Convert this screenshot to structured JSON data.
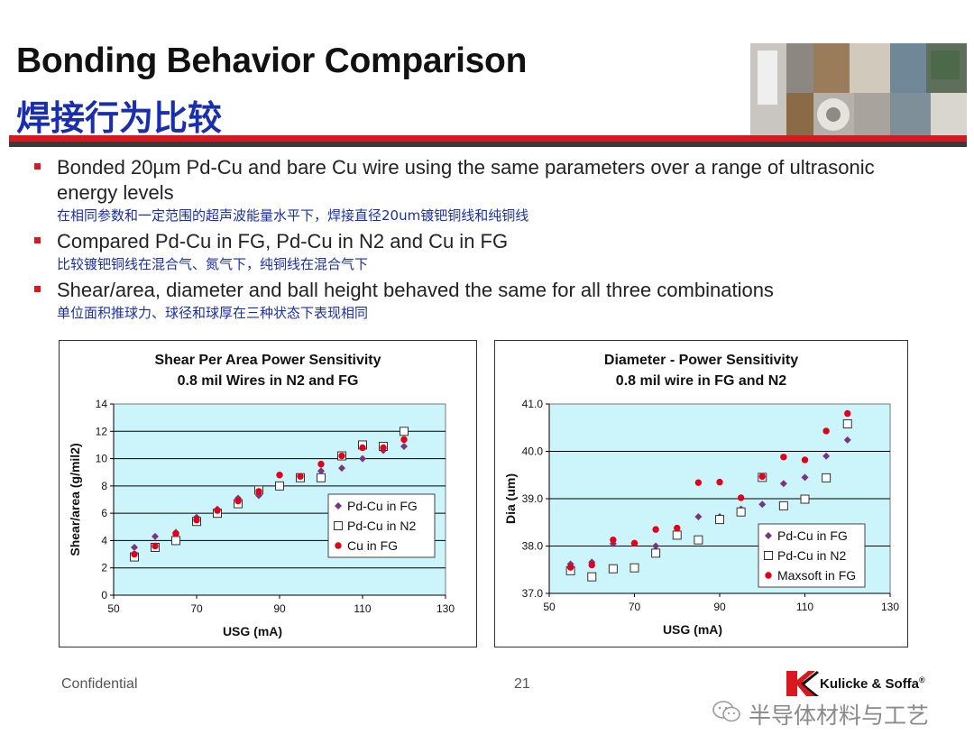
{
  "title_en": "Bonding Behavior Comparison",
  "title_zh": "焊接行为比较",
  "bullets": [
    {
      "en": "Bonded 20µm Pd-Cu and bare Cu wire using the same parameters over a range of ultrasonic energy levels",
      "zh": "在相同参数和一定范围的超声波能量水平下，焊接直径20um镀钯铜线和纯铜线"
    },
    {
      "en": "Compared Pd-Cu in FG, Pd-Cu in N2 and Cu in FG",
      "zh": "比较镀钯铜线在混合气、氮气下，纯铜线在混合气下"
    },
    {
      "en": "Shear/area, diameter and ball height behaved the same for all three combinations",
      "zh": "单位面积推球力、球径和球厚在三种状态下表现相同"
    }
  ],
  "chart_data": [
    {
      "type": "scatter",
      "title": "Shear Per Area Power Sensitivity",
      "subtitle": "0.8 mil Wires in N2 and FG",
      "xlabel": "USG (mA)",
      "ylabel": "Shear/area (g/mil2)",
      "xlim": [
        50,
        130
      ],
      "ylim": [
        0,
        14
      ],
      "xticks": [
        "50",
        "70",
        "90",
        "110",
        "130"
      ],
      "yticks": [
        "0",
        "2",
        "4",
        "6",
        "8",
        "10",
        "12",
        "14"
      ],
      "grid": "horizontal",
      "legend": "center-right",
      "plot_bg": "#ccf5fb",
      "series": [
        {
          "name": "Pd-Cu in FG",
          "marker": "diamond",
          "color": "#7b3580",
          "x": [
            55,
            60,
            65,
            70,
            75,
            80,
            85,
            90,
            95,
            100,
            105,
            110,
            115,
            120
          ],
          "y": [
            3.5,
            4.3,
            4.6,
            5.7,
            6.3,
            7.1,
            7.3,
            7.9,
            8.6,
            9.1,
            9.3,
            10.0,
            10.6,
            10.9
          ]
        },
        {
          "name": "Pd-Cu in N2",
          "marker": "square-open",
          "color": "#333333",
          "x": [
            55,
            60,
            65,
            70,
            75,
            80,
            85,
            90,
            95,
            100,
            105,
            110,
            115,
            120
          ],
          "y": [
            2.8,
            3.5,
            4.0,
            5.4,
            6.0,
            6.7,
            7.7,
            8.0,
            8.6,
            8.6,
            10.2,
            11.0,
            10.9,
            12.0
          ]
        },
        {
          "name": "Cu in FG",
          "marker": "circle",
          "color": "#e3001b",
          "x": [
            55,
            60,
            65,
            70,
            75,
            80,
            85,
            90,
            95,
            100,
            105,
            110,
            115,
            120
          ],
          "y": [
            3.0,
            3.6,
            4.5,
            5.5,
            6.2,
            6.9,
            7.6,
            8.8,
            8.7,
            9.6,
            10.2,
            10.8,
            10.8,
            11.4
          ]
        }
      ]
    },
    {
      "type": "scatter",
      "title": "Diameter - Power Sensitivity",
      "subtitle": "0.8 mil wire in FG and N2",
      "xlabel": "USG (mA)",
      "ylabel": "Dia (um)",
      "xlim": [
        50,
        130
      ],
      "ylim": [
        37.0,
        41.0
      ],
      "xticks": [
        "50",
        "70",
        "90",
        "110",
        "130"
      ],
      "yticks": [
        "37.0",
        "38.0",
        "39.0",
        "40.0",
        "41.0"
      ],
      "grid": "horizontal",
      "legend": "bottom-right",
      "plot_bg": "#ccf5fb",
      "series": [
        {
          "name": "Pd-Cu in FG",
          "marker": "diamond",
          "color": "#7b3580",
          "x": [
            55,
            60,
            65,
            70,
            75,
            80,
            85,
            90,
            95,
            100,
            105,
            110,
            115,
            120
          ],
          "y": [
            37.62,
            37.66,
            38.05,
            38.06,
            38.0,
            38.3,
            38.62,
            38.62,
            38.78,
            38.88,
            39.32,
            39.45,
            39.9,
            40.24
          ]
        },
        {
          "name": "Pd-Cu in N2",
          "marker": "square-open",
          "color": "#333333",
          "x": [
            55,
            60,
            65,
            70,
            75,
            80,
            85,
            90,
            95,
            100,
            105,
            110,
            115,
            120
          ],
          "y": [
            37.48,
            37.35,
            37.52,
            37.54,
            37.85,
            38.23,
            38.13,
            38.56,
            38.72,
            39.45,
            38.85,
            38.99,
            39.44,
            40.58
          ]
        },
        {
          "name": "Maxsoft in FG",
          "marker": "circle",
          "color": "#e3001b",
          "x": [
            55,
            60,
            65,
            70,
            75,
            80,
            85,
            90,
            95,
            100,
            105,
            110,
            115,
            120
          ],
          "y": [
            37.55,
            37.6,
            38.13,
            38.06,
            38.35,
            38.38,
            39.34,
            39.35,
            39.02,
            39.47,
            39.88,
            39.82,
            40.43,
            40.8
          ]
        }
      ]
    }
  ],
  "footer": {
    "left": "Confidential",
    "page": "21",
    "logo_text": "Kulicke & Soffa",
    "logo_mark": "®"
  },
  "watermark": "半导体材料与工艺",
  "colors": {
    "accent_red": "#d9191f",
    "title_blue": "#1a2fb0",
    "plot_bg": "#ccf5fb"
  }
}
